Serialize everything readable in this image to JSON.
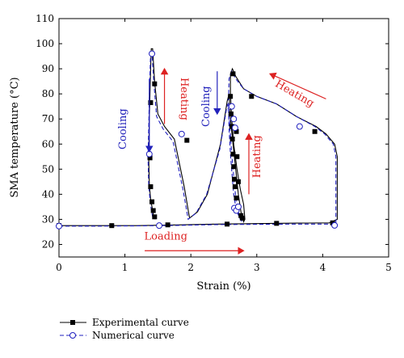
{
  "chart_data": {
    "type": "line",
    "title": "",
    "xlabel": "Strain (%)",
    "ylabel": "SMA temperature (°C)",
    "xlim": [
      0,
      5
    ],
    "ylim": [
      15,
      110
    ],
    "xticks": [
      0,
      1,
      2,
      3,
      4,
      5
    ],
    "yticks": [
      20,
      30,
      40,
      50,
      60,
      70,
      80,
      90,
      100,
      110
    ],
    "grid": false,
    "legend_position": "below-left",
    "series": [
      {
        "name": "Experimental curve",
        "color": "#000000",
        "line": "solid",
        "marker": "filled-square",
        "x": [
          0.0,
          0.6,
          1.2,
          1.8,
          2.4,
          3.0,
          3.6,
          4.1,
          4.22,
          4.22,
          4.18,
          4.05,
          3.9,
          3.6,
          3.3,
          3.0,
          2.8,
          2.68,
          2.63,
          2.6,
          2.6,
          2.62,
          2.65,
          2.7,
          2.75,
          2.8,
          2.82,
          2.8,
          2.76,
          2.72,
          2.68,
          2.64,
          2.6,
          2.58,
          2.55,
          2.45,
          2.25,
          2.1,
          1.98,
          1.9,
          1.75,
          1.6,
          1.5,
          1.45,
          1.42,
          1.4,
          1.39,
          1.38,
          1.37,
          1.36,
          1.37,
          1.39,
          1.41,
          1.43,
          1.45,
          1.46
        ],
        "y": [
          27.5,
          27.5,
          27.5,
          27.8,
          28.1,
          28.3,
          28.5,
          28.6,
          30,
          55,
          60,
          64,
          67,
          71,
          76,
          79,
          82,
          87,
          90,
          88,
          80,
          70,
          60,
          50,
          42,
          36,
          30,
          29,
          33,
          40,
          50,
          60,
          70,
          80,
          77,
          60,
          40,
          33,
          30.5,
          43,
          62,
          67,
          72,
          85,
          98,
          98,
          90,
          80,
          70,
          55,
          44,
          38,
          35,
          32,
          31,
          30
        ]
      },
      {
        "name": "Numerical curve",
        "color": "#1f1fbf",
        "line": "dashed",
        "marker": "open-circle",
        "x": [
          0.0,
          0.6,
          1.2,
          1.8,
          2.4,
          3.0,
          3.6,
          4.1,
          4.2,
          4.2,
          4.16,
          4.03,
          3.88,
          3.6,
          3.3,
          3.0,
          2.8,
          2.68,
          2.62,
          2.58,
          2.57,
          2.58,
          2.6,
          2.63,
          2.65,
          2.68,
          2.7,
          2.75,
          2.78,
          2.7,
          2.66,
          2.62,
          2.59,
          2.56,
          2.54,
          2.44,
          2.24,
          2.08,
          1.96,
          1.88,
          1.73,
          1.58,
          1.48,
          1.44,
          1.41,
          1.39,
          1.38,
          1.37,
          1.36,
          1.35,
          1.36,
          1.38,
          1.4,
          1.42,
          1.44
        ],
        "y": [
          27.3,
          27.3,
          27.4,
          27.6,
          27.9,
          28.0,
          28.1,
          28.1,
          28,
          55,
          60,
          64,
          67,
          71,
          76,
          79,
          82,
          86,
          89,
          86,
          76,
          66,
          56,
          46,
          40,
          35,
          33,
          30,
          29,
          34,
          44,
          56,
          68,
          76,
          74,
          58,
          40,
          32.5,
          30,
          42,
          61,
          66,
          71,
          84,
          96,
          96,
          88,
          78,
          66,
          55,
          44,
          38,
          34,
          31,
          30
        ]
      }
    ],
    "markers_exp": [
      {
        "x": 0.0,
        "y": 27.5
      },
      {
        "x": 0.8,
        "y": 27.5
      },
      {
        "x": 1.65,
        "y": 27.8
      },
      {
        "x": 2.55,
        "y": 28.1
      },
      {
        "x": 3.3,
        "y": 28.4
      },
      {
        "x": 4.15,
        "y": 28.6
      },
      {
        "x": 3.88,
        "y": 65
      },
      {
        "x": 2.92,
        "y": 79
      },
      {
        "x": 2.64,
        "y": 88
      },
      {
        "x": 2.6,
        "y": 79
      },
      {
        "x": 2.61,
        "y": 72
      },
      {
        "x": 2.62,
        "y": 67
      },
      {
        "x": 2.63,
        "y": 62
      },
      {
        "x": 2.64,
        "y": 56
      },
      {
        "x": 2.65,
        "y": 51
      },
      {
        "x": 2.66,
        "y": 46
      },
      {
        "x": 2.67,
        "y": 43
      },
      {
        "x": 2.69,
        "y": 38.5
      },
      {
        "x": 2.72,
        "y": 35
      },
      {
        "x": 2.76,
        "y": 31.5
      },
      {
        "x": 2.78,
        "y": 30.5
      },
      {
        "x": 2.72,
        "y": 45
      },
      {
        "x": 2.7,
        "y": 55
      },
      {
        "x": 2.69,
        "y": 65
      },
      {
        "x": 1.94,
        "y": 61.5
      },
      {
        "x": 1.45,
        "y": 84
      },
      {
        "x": 1.39,
        "y": 76.5
      },
      {
        "x": 1.38,
        "y": 54.5
      },
      {
        "x": 1.39,
        "y": 43
      },
      {
        "x": 1.41,
        "y": 37
      },
      {
        "x": 1.43,
        "y": 33.5
      },
      {
        "x": 1.45,
        "y": 31
      }
    ],
    "markers_num": [
      {
        "x": 0.0,
        "y": 27.3
      },
      {
        "x": 1.52,
        "y": 27.5
      },
      {
        "x": 4.18,
        "y": 27.6
      },
      {
        "x": 3.65,
        "y": 67
      },
      {
        "x": 2.62,
        "y": 75
      },
      {
        "x": 2.65,
        "y": 70
      },
      {
        "x": 2.67,
        "y": 66.5
      },
      {
        "x": 2.66,
        "y": 34.5
      },
      {
        "x": 2.69,
        "y": 33.5
      },
      {
        "x": 2.72,
        "y": 35
      },
      {
        "x": 1.86,
        "y": 64
      },
      {
        "x": 1.41,
        "y": 96
      },
      {
        "x": 1.37,
        "y": 56
      }
    ],
    "annotations": [
      {
        "text": "Cooling",
        "color": "#2222bb",
        "x": 1.02,
        "y": 66,
        "rotate": -90,
        "arrow": {
          "x1": 1.37,
          "y1": 86,
          "x2": 1.37,
          "y2": 57
        }
      },
      {
        "text": "Heating",
        "color": "#dd2222",
        "x": 1.85,
        "y": 78,
        "rotate": 90,
        "arrow": {
          "x1": 1.6,
          "y1": 68,
          "x2": 1.6,
          "y2": 90
        }
      },
      {
        "text": "Cooling",
        "color": "#2222bb",
        "x": 2.28,
        "y": 75,
        "rotate": -90,
        "arrow": {
          "x1": 2.4,
          "y1": 89,
          "x2": 2.4,
          "y2": 72
        }
      },
      {
        "text": "Heating",
        "color": "#dd2222",
        "x": 3.05,
        "y": 55,
        "rotate": -90,
        "arrow": {
          "x1": 2.88,
          "y1": 40,
          "x2": 2.88,
          "y2": 64
        }
      },
      {
        "text": "Heating",
        "color": "#dd2222",
        "x": 3.55,
        "y": 79,
        "rotate": 30,
        "arrow": {
          "x1": 4.05,
          "y1": 78,
          "x2": 3.2,
          "y2": 88
        }
      },
      {
        "text": "Loading",
        "color": "#dd2222",
        "x": 1.62,
        "y": 22,
        "rotate": 0,
        "arrow": {
          "x1": 1.3,
          "y1": 17.5,
          "x2": 2.8,
          "y2": 17.5
        }
      }
    ]
  }
}
